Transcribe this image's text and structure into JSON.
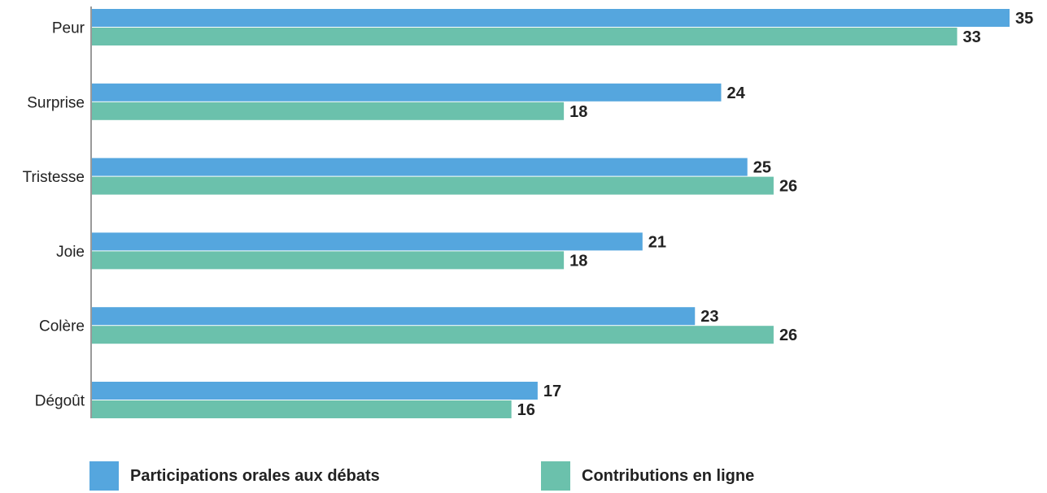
{
  "chart_data": {
    "type": "bar",
    "orientation": "horizontal",
    "categories": [
      "Peur",
      "Surprise",
      "Tristesse",
      "Joie",
      "Colère",
      "Dégoût"
    ],
    "series": [
      {
        "name": "Participations orales aux débats",
        "color": "#55a6de",
        "values": [
          35,
          24,
          25,
          21,
          23,
          17
        ]
      },
      {
        "name": "Contributions en ligne",
        "color": "#6bc1ac",
        "values": [
          33,
          18,
          26,
          18,
          26,
          16
        ]
      }
    ],
    "title": "",
    "xlabel": "",
    "ylabel": "",
    "xlim": [
      0,
      35
    ],
    "grid": false,
    "data_labels": true,
    "legend_position": "bottom"
  }
}
